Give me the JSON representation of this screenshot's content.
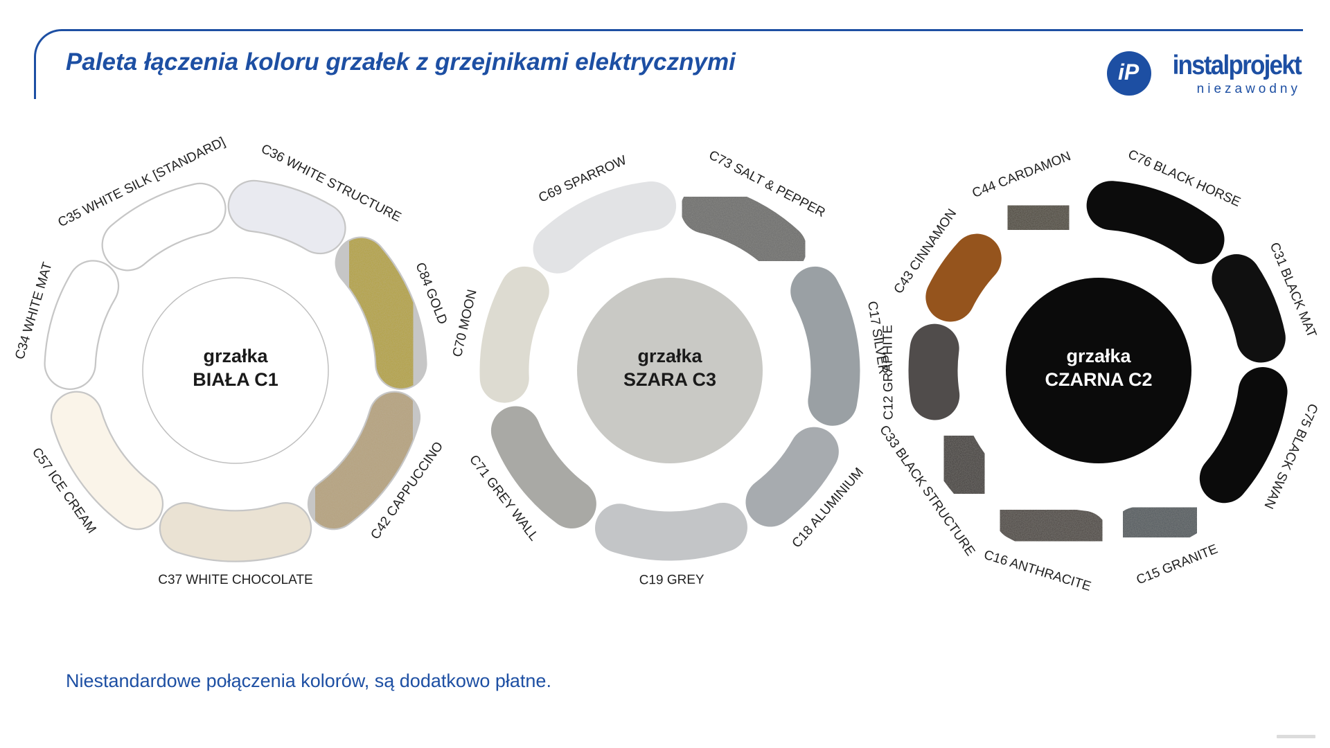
{
  "page": {
    "title": "Paleta łączenia koloru grzałek z grzejnikami elektrycznymi",
    "footnote": "Niestandardowe połączenia kolorów, są dodatkowo płatne.",
    "accent_blue": "#1d4fa3",
    "background": "#ffffff"
  },
  "logo": {
    "monogram": "iP",
    "brand": "instalprojekt",
    "tagline": "niezawodny"
  },
  "palettes": [
    {
      "id": "biala-c1",
      "center_label": {
        "line1": "grzałka",
        "line2": "BIAŁA C1"
      },
      "center_fill": "#ffffff",
      "center_stroke": "#bfbfbf",
      "center_text_color": "#1a1a1a",
      "segment_outline": "#c6c6c6",
      "segments": [
        {
          "code": "C35",
          "name": "WHITE SILK [STANDARD]",
          "label": "C35 WHITE SILK [STANDARD]",
          "color": "#ffffff",
          "start": -50,
          "end": -3,
          "textured": false
        },
        {
          "code": "C36",
          "name": "WHITE STRUCTURE",
          "label": "C36 WHITE STRUCTURE",
          "color": "#e9eaf0",
          "start": -3,
          "end": 40,
          "textured": false,
          "label_angle": 27
        },
        {
          "code": "C84",
          "name": "GOLD",
          "label": "C84 GOLD",
          "color": "#b4a23c",
          "start": 40,
          "end": 97,
          "textured": true
        },
        {
          "code": "C42",
          "name": "CAPPUCCINO",
          "label": "C42 CAPPUCCINO",
          "color": "#b5a17d",
          "start": 97,
          "end": 153,
          "textured": true
        },
        {
          "code": "C37",
          "name": "WHITE CHOCOLATE",
          "label": "C37 WHITE CHOCOLATE",
          "color": "#eae2d3",
          "start": 153,
          "end": 207,
          "textured": false
        },
        {
          "code": "C57",
          "name": "ICE CREAM",
          "label": "C57 ICE CREAM",
          "color": "#faf4e9",
          "start": 207,
          "end": 263,
          "textured": false
        },
        {
          "code": "C34",
          "name": "WHITE MAT",
          "label": "C34 WHITE MAT",
          "color": "#ffffff",
          "start": 263,
          "end": 310,
          "textured": false
        }
      ]
    },
    {
      "id": "szara-c3",
      "center_label": {
        "line1": "grzałka",
        "line2": "SZARA C3"
      },
      "center_fill": "#c9c9c5",
      "center_stroke": "",
      "center_text_color": "#1a1a1a",
      "segment_outline": "#ffffff",
      "segments": [
        {
          "code": "C69",
          "name": "SPARROW",
          "label": "C69 SPARROW",
          "color": "#e2e3e5",
          "start": -52,
          "end": 3,
          "textured": false
        },
        {
          "code": "C73",
          "name": "SALT & PEPPER",
          "label": "C73 SALT & PEPPER",
          "color": "#6a6a6a",
          "start": 3,
          "end": 52,
          "textured": true
        },
        {
          "code": "C17",
          "name": "SILVER",
          "label": "C17 SILVER",
          "color": "#9aa0a4",
          "start": 52,
          "end": 110,
          "textured": false
        },
        {
          "code": "C18",
          "name": "ALUMINIUM",
          "label": "C18 ALUMINIUM",
          "color": "#a7abaf",
          "start": 110,
          "end": 152,
          "textured": false
        },
        {
          "code": "C19",
          "name": "GREY",
          "label": "C19 GREY",
          "color": "#c3c5c7",
          "start": 152,
          "end": 207,
          "textured": false
        },
        {
          "code": "C71",
          "name": "GREY WALL",
          "label": "C71 GREY WALL",
          "color": "#a9a9a5",
          "start": 207,
          "end": 258,
          "textured": false
        },
        {
          "code": "C70",
          "name": "MOON",
          "label": "C70 MOON",
          "color": "#dddbd1",
          "start": 258,
          "end": 308,
          "textured": false
        }
      ]
    },
    {
      "id": "czarna-c2",
      "center_label": {
        "line1": "grzałka",
        "line2": "CZARNA C2"
      },
      "center_fill": "#0b0b0b",
      "center_stroke": "",
      "center_text_color": "#ffffff",
      "segment_outline": "#ffffff",
      "segments": [
        {
          "code": "C44",
          "name": "CARDAMON",
          "label": "C44 CARDAMON",
          "color": "#4a4238",
          "start": -38,
          "end": -5,
          "textured": true
        },
        {
          "code": "C76",
          "name": "BLACK HORSE",
          "label": "C76 BLACK HORSE",
          "color": "#0c0c0c",
          "start": -5,
          "end": 47,
          "textured": false,
          "label_angle": 24
        },
        {
          "code": "C31",
          "name": "BLACK MAT",
          "label": "C31 BLACK MAT",
          "color": "#101010",
          "start": 47,
          "end": 88,
          "textured": false
        },
        {
          "code": "C75",
          "name": "BLACK SWAN",
          "label": "C75 BLACK SWAN",
          "color": "#0b0b0b",
          "start": 88,
          "end": 140,
          "textured": false
        },
        {
          "code": "C15",
          "name": "GRANITE",
          "label": "C15 GRANITE",
          "color": "#4d555c",
          "start": 140,
          "end": 176,
          "textured": true
        },
        {
          "code": "C16",
          "name": "ANTHRACITE",
          "label": "C16 ANTHRACITE",
          "color": "#473f3d",
          "start": 176,
          "end": 218,
          "textured": true
        },
        {
          "code": "C33",
          "name": "BLACK STRUCTURE",
          "label": "C33 BLACK STRUCTURE",
          "color": "#3a3635",
          "start": 218,
          "end": 252,
          "textured": true
        },
        {
          "code": "C12",
          "name": "GRAPHITE",
          "label": "C12 GRAPHITE",
          "color": "#504c4b",
          "start": 252,
          "end": 287,
          "textured": false
        },
        {
          "code": "C43",
          "name": "CINNAMON",
          "label": "C43 CINNAMON",
          "color": "#95541d",
          "start": 287,
          "end": 322,
          "textured": false
        }
      ]
    }
  ]
}
